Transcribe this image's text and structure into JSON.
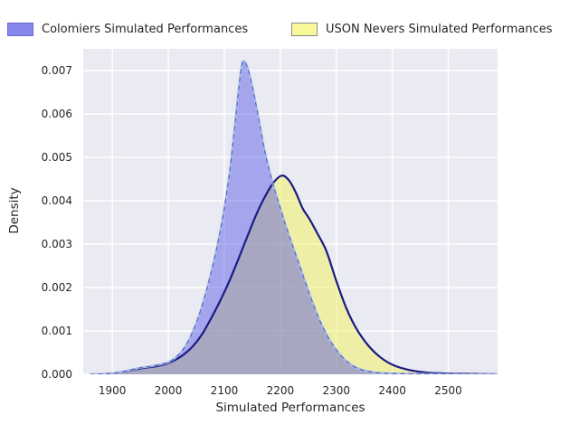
{
  "figure": {
    "background": "#ffffff",
    "plot_background": "#eaeaf2",
    "grid_color": "#ffffff",
    "text_color": "#262626"
  },
  "legend": {
    "items": [
      {
        "label": "Colomiers Simulated Performances",
        "swatch_fill": "#8686eb",
        "swatch_border": "#6868d8"
      },
      {
        "label": "USON Nevers Simulated Performances",
        "swatch_fill": "#f8f89b",
        "swatch_border": "#8a8a8a"
      }
    ]
  },
  "axes": {
    "xlabel": "Simulated Performances",
    "ylabel": "Density",
    "x_ticks": [
      {
        "label": "1900",
        "value": 1900
      },
      {
        "label": "2000",
        "value": 2000
      },
      {
        "label": "2100",
        "value": 2100
      },
      {
        "label": "2200",
        "value": 2200
      },
      {
        "label": "2300",
        "value": 2300
      },
      {
        "label": "2400",
        "value": 2400
      },
      {
        "label": "2500",
        "value": 2500
      }
    ],
    "y_ticks": [
      {
        "label": "0.000",
        "value": 0.0
      },
      {
        "label": "0.001",
        "value": 0.001
      },
      {
        "label": "0.002",
        "value": 0.002
      },
      {
        "label": "0.003",
        "value": 0.003
      },
      {
        "label": "0.004",
        "value": 0.004
      },
      {
        "label": "0.005",
        "value": 0.005
      },
      {
        "label": "0.006",
        "value": 0.006
      },
      {
        "label": "0.007",
        "value": 0.007
      }
    ]
  },
  "chart_data": {
    "type": "area",
    "title": "",
    "xlabel": "Simulated Performances",
    "ylabel": "Density",
    "xlim": [
      1848,
      2588
    ],
    "ylim": [
      0,
      0.0075
    ],
    "grid": true,
    "legend_position": "top",
    "series": [
      {
        "name": "Colomiers Simulated Performances",
        "fill": "rgba(75,75,230,0.43)",
        "edge_color": "#a4bcdf",
        "edge_dash_color": "#5a5ad2",
        "peak_x": 2133,
        "peak_y": 0.0072,
        "x": [
          1860,
          1885,
          1910,
          1932,
          1950,
          1966,
          1982,
          2000,
          2016,
          2032,
          2048,
          2062,
          2076,
          2090,
          2100,
          2110,
          2119,
          2127,
          2133,
          2141,
          2150,
          2160,
          2172,
          2186,
          2200,
          2216,
          2234,
          2252,
          2270,
          2290,
          2312,
          2336,
          2365,
          2400,
          2450,
          2520,
          2588
        ],
        "y": [
          0,
          1e-05,
          4e-05,
          0.0001,
          0.00015,
          0.00018,
          0.00022,
          0.00028,
          0.00042,
          0.00068,
          0.00112,
          0.00165,
          0.00232,
          0.00312,
          0.00382,
          0.0047,
          0.00575,
          0.00672,
          0.0072,
          0.00708,
          0.00662,
          0.00598,
          0.00515,
          0.00442,
          0.00382,
          0.00318,
          0.00252,
          0.00185,
          0.00125,
          0.00075,
          0.00038,
          0.00015,
          5e-05,
          2e-05,
          1e-05,
          0,
          0
        ]
      },
      {
        "name": "USON Nevers Simulated Performances",
        "fill": "rgba(240,240,105,0.55)",
        "line_color": "#1b1b85",
        "peak_x": 2203,
        "peak_y": 0.00458,
        "x": [
          1880,
          1905,
          1928,
          1948,
          1964,
          1980,
          1996,
          2012,
          2028,
          2044,
          2060,
          2076,
          2092,
          2108,
          2124,
          2140,
          2156,
          2172,
          2188,
          2203,
          2216,
          2228,
          2240,
          2252,
          2266,
          2282,
          2300,
          2318,
          2336,
          2356,
          2378,
          2402,
          2430,
          2462,
          2500,
          2545,
          2588
        ],
        "y": [
          0,
          3e-05,
          8e-05,
          0.00013,
          0.00016,
          0.00019,
          0.00024,
          0.00033,
          0.00046,
          0.00065,
          0.00092,
          0.00128,
          0.00168,
          0.00212,
          0.00262,
          0.00314,
          0.00365,
          0.00408,
          0.00442,
          0.00458,
          0.00446,
          0.00418,
          0.00382,
          0.00358,
          0.00325,
          0.00285,
          0.00215,
          0.00152,
          0.00105,
          0.00068,
          0.0004,
          0.00021,
          0.0001,
          4e-05,
          2e-05,
          1e-05,
          0
        ]
      }
    ]
  }
}
